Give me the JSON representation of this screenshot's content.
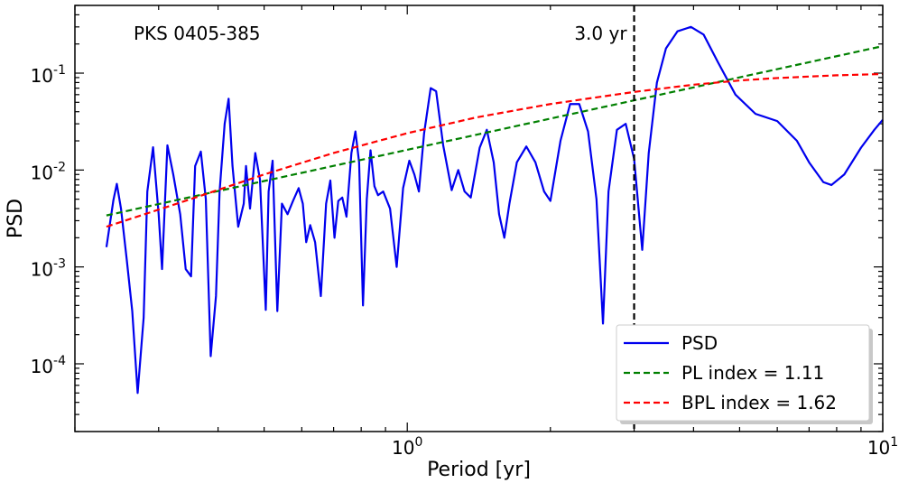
{
  "chart_data": {
    "type": "line",
    "title": "",
    "annotation": "PKS 0405-385",
    "xlabel": "Period [yr]",
    "ylabel": "PSD",
    "xscale": "log",
    "yscale": "log",
    "xlim": [
      0.2,
      10
    ],
    "ylim": [
      2e-05,
      0.5
    ],
    "x_tick_labels": [
      "10^0",
      "10^1"
    ],
    "y_tick_labels": [
      "10^-4",
      "10^-3",
      "10^-2",
      "10^-1"
    ],
    "vline": {
      "x": 3.0,
      "label": "3.0 yr",
      "color": "#000000",
      "style": "dashed"
    },
    "legend_position": "lower-right",
    "series": [
      {
        "name": "PSD",
        "color": "#0000ee",
        "style": "solid",
        "points": [
          [
            0.233,
            0.0016
          ],
          [
            0.241,
            0.0049
          ],
          [
            0.245,
            0.0072
          ],
          [
            0.25,
            0.004
          ],
          [
            0.257,
            0.0012
          ],
          [
            0.264,
            0.00035
          ],
          [
            0.271,
            5e-05
          ],
          [
            0.279,
            0.0003
          ],
          [
            0.284,
            0.006
          ],
          [
            0.292,
            0.0172
          ],
          [
            0.3,
            0.0035
          ],
          [
            0.305,
            0.00095
          ],
          [
            0.313,
            0.018
          ],
          [
            0.322,
            0.009
          ],
          [
            0.333,
            0.0035
          ],
          [
            0.342,
            0.00095
          ],
          [
            0.351,
            0.0008
          ],
          [
            0.358,
            0.011
          ],
          [
            0.368,
            0.0155
          ],
          [
            0.377,
            0.005
          ],
          [
            0.386,
            0.00012
          ],
          [
            0.396,
            0.0005
          ],
          [
            0.403,
            0.006
          ],
          [
            0.413,
            0.03
          ],
          [
            0.421,
            0.0545
          ],
          [
            0.429,
            0.011
          ],
          [
            0.441,
            0.0026
          ],
          [
            0.453,
            0.0045
          ],
          [
            0.458,
            0.011
          ],
          [
            0.467,
            0.004
          ],
          [
            0.479,
            0.015
          ],
          [
            0.49,
            0.008
          ],
          [
            0.504,
            0.00036
          ],
          [
            0.511,
            0.006
          ],
          [
            0.521,
            0.0125
          ],
          [
            0.533,
            0.00035
          ],
          [
            0.545,
            0.0045
          ],
          [
            0.56,
            0.0035
          ],
          [
            0.575,
            0.0048
          ],
          [
            0.591,
            0.0065
          ],
          [
            0.603,
            0.0045
          ],
          [
            0.613,
            0.0018
          ],
          [
            0.625,
            0.0027
          ],
          [
            0.64,
            0.0018
          ],
          [
            0.658,
            0.0005
          ],
          [
            0.675,
            0.0045
          ],
          [
            0.689,
            0.0078
          ],
          [
            0.703,
            0.002
          ],
          [
            0.716,
            0.0048
          ],
          [
            0.73,
            0.0052
          ],
          [
            0.745,
            0.0033
          ],
          [
            0.763,
            0.015
          ],
          [
            0.778,
            0.025
          ],
          [
            0.792,
            0.012
          ],
          [
            0.807,
            0.0004
          ],
          [
            0.822,
            0.005
          ],
          [
            0.837,
            0.016
          ],
          [
            0.853,
            0.0068
          ],
          [
            0.868,
            0.0055
          ],
          [
            0.89,
            0.006
          ],
          [
            0.92,
            0.004
          ],
          [
            0.95,
            0.001
          ],
          [
            0.98,
            0.0065
          ],
          [
            1.01,
            0.0125
          ],
          [
            1.035,
            0.009
          ],
          [
            1.058,
            0.006
          ],
          [
            1.085,
            0.024
          ],
          [
            1.12,
            0.07
          ],
          [
            1.15,
            0.065
          ],
          [
            1.19,
            0.018
          ],
          [
            1.24,
            0.0062
          ],
          [
            1.28,
            0.01
          ],
          [
            1.32,
            0.006
          ],
          [
            1.36,
            0.0052
          ],
          [
            1.42,
            0.017
          ],
          [
            1.47,
            0.026
          ],
          [
            1.52,
            0.012
          ],
          [
            1.56,
            0.0035
          ],
          [
            1.6,
            0.002
          ],
          [
            1.64,
            0.0045
          ],
          [
            1.7,
            0.012
          ],
          [
            1.78,
            0.0175
          ],
          [
            1.86,
            0.012
          ],
          [
            1.94,
            0.006
          ],
          [
            2.0,
            0.0048
          ],
          [
            2.1,
            0.02
          ],
          [
            2.2,
            0.048
          ],
          [
            2.3,
            0.048
          ],
          [
            2.4,
            0.025
          ],
          [
            2.5,
            0.005
          ],
          [
            2.58,
            0.00026
          ],
          [
            2.65,
            0.006
          ],
          [
            2.76,
            0.026
          ],
          [
            2.88,
            0.03
          ],
          [
            3.0,
            0.013
          ],
          [
            3.12,
            0.0015
          ],
          [
            3.22,
            0.015
          ],
          [
            3.35,
            0.08
          ],
          [
            3.5,
            0.18
          ],
          [
            3.7,
            0.27
          ],
          [
            3.95,
            0.3
          ],
          [
            4.2,
            0.25
          ],
          [
            4.5,
            0.13
          ],
          [
            4.9,
            0.06
          ],
          [
            5.4,
            0.038
          ],
          [
            6.0,
            0.032
          ],
          [
            6.6,
            0.02
          ],
          [
            7.0,
            0.012
          ],
          [
            7.5,
            0.0075
          ],
          [
            7.8,
            0.007
          ],
          [
            8.3,
            0.009
          ],
          [
            9.0,
            0.017
          ],
          [
            9.6,
            0.026
          ],
          [
            10.0,
            0.033
          ]
        ]
      },
      {
        "name": "PL index = 1.11",
        "color": "#008000",
        "style": "dashed",
        "points": [
          [
            0.233,
            0.0034
          ],
          [
            10.0,
            0.19
          ]
        ]
      },
      {
        "name": "BPL index = 1.62",
        "color": "#ff0000",
        "style": "dashed",
        "points": [
          [
            0.233,
            0.0026
          ],
          [
            0.35,
            0.005
          ],
          [
            0.5,
            0.009
          ],
          [
            0.7,
            0.015
          ],
          [
            1.0,
            0.024
          ],
          [
            1.4,
            0.035
          ],
          [
            2.0,
            0.048
          ],
          [
            3.0,
            0.064
          ],
          [
            4.0,
            0.076
          ],
          [
            5.0,
            0.084
          ],
          [
            6.0,
            0.089
          ],
          [
            8.0,
            0.095
          ],
          [
            10.0,
            0.098
          ]
        ]
      }
    ]
  }
}
